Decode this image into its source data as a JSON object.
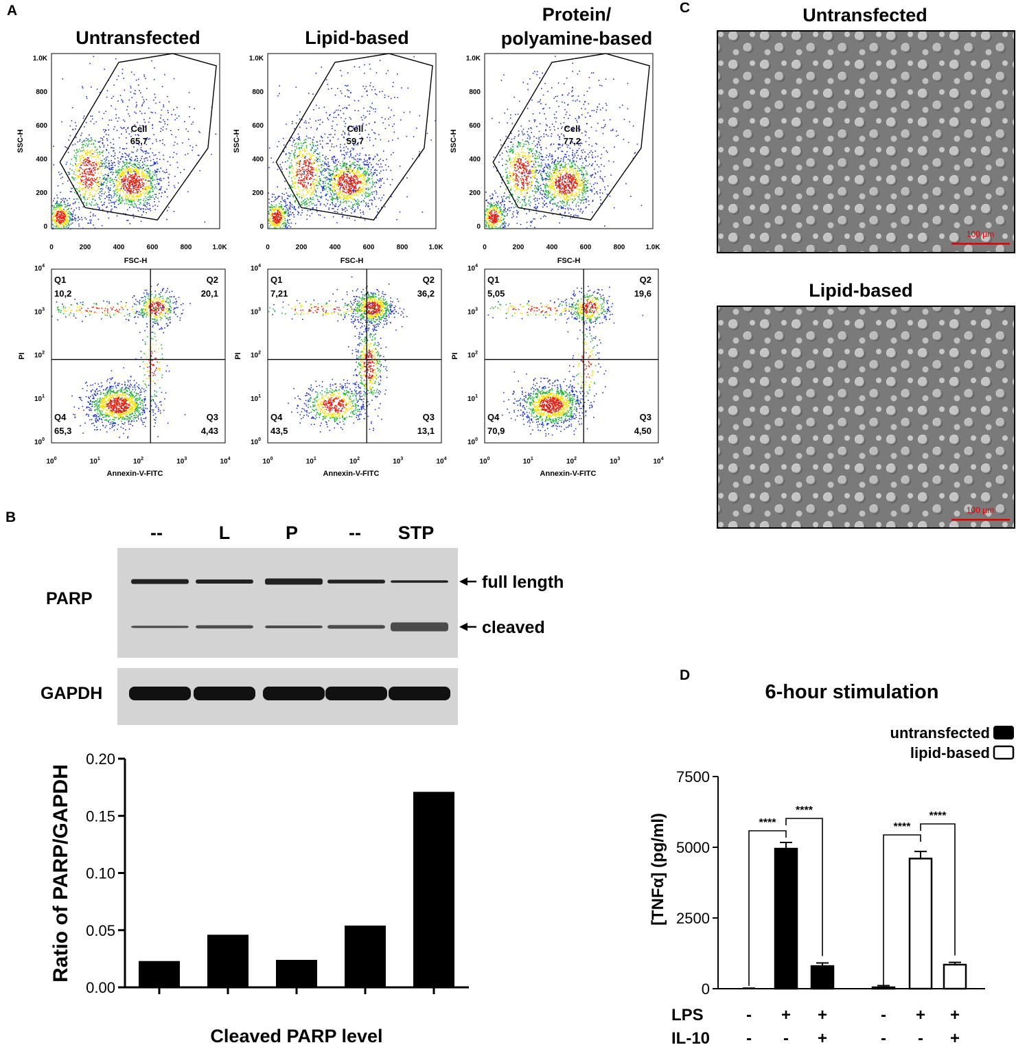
{
  "panels": {
    "A": {
      "letter": "A",
      "columns": [
        {
          "title": [
            "Untransfected"
          ],
          "gate_name": "Cell",
          "gate_value": "65,7",
          "quadrants": {
            "q1": [
              "Q1",
              "10,2"
            ],
            "q2": [
              "Q2",
              "20,1"
            ],
            "q3": [
              "Q3",
              "4,43"
            ],
            "q4": [
              "Q4",
              "65,3"
            ]
          }
        },
        {
          "title": [
            "Lipid-based"
          ],
          "gate_name": "Cell",
          "gate_value": "59,7",
          "quadrants": {
            "q1": [
              "Q1",
              "7,21"
            ],
            "q2": [
              "Q2",
              "36,2"
            ],
            "q3": [
              "Q3",
              "13,1"
            ],
            "q4": [
              "Q4",
              "43,5"
            ]
          }
        },
        {
          "title": [
            "Protein/",
            "polyamine-based"
          ],
          "gate_name": "Cell",
          "gate_value": "77,2",
          "quadrants": {
            "q1": [
              "Q1",
              "5,05"
            ],
            "q2": [
              "Q2",
              "19,6"
            ],
            "q3": [
              "Q3",
              "4,50"
            ],
            "q4": [
              "Q4",
              "70,9"
            ]
          }
        }
      ],
      "scatter_axes": {
        "x_label": "FSC-H",
        "y_label": "SSC-H",
        "ticks": [
          "0",
          "200",
          "400",
          "600",
          "800",
          "1.0K"
        ]
      },
      "annexin_axes": {
        "x_label": "Annexin-V-FITC",
        "y_label": "PI",
        "tick_exponents": [
          "0",
          "1",
          "2",
          "3",
          "4"
        ],
        "tick_base": "10"
      },
      "colors": {
        "density_low": "#1a2fd0",
        "density_mid": "#22b23a",
        "density_high": "#f5e000",
        "density_peak": "#e02010"
      }
    },
    "B": {
      "letter": "B",
      "lanes": [
        "--",
        "L",
        "P",
        "--",
        "STP"
      ],
      "blot_labels": {
        "parp": "PARP",
        "gapdh": "GAPDH"
      },
      "band_labels": {
        "full": "full length",
        "cleaved": "cleaved"
      },
      "bar_color": "#000000"
    },
    "C": {
      "letter": "C",
      "images": [
        {
          "title": "Untransfected",
          "scale": "100 µm"
        },
        {
          "title": "Lipid-based",
          "scale": "100 µm"
        }
      ],
      "scale_color": "#e00000"
    },
    "D": {
      "letter": "D",
      "title": "6-hour stimulation",
      "legend": [
        {
          "name": "untransfected",
          "fill": "#000000"
        },
        {
          "name": "lipid-based",
          "fill": "#ffffff"
        }
      ],
      "conditions": {
        "lps_label": "LPS",
        "il10_label": "IL-10",
        "lps": [
          "-",
          "+",
          "+",
          "-",
          "+",
          "+"
        ],
        "il10": [
          "-",
          "-",
          "+",
          "-",
          "-",
          "+"
        ]
      },
      "significance": [
        "****",
        "****",
        "****",
        "****"
      ]
    }
  },
  "chart_data": [
    {
      "type": "bar",
      "title": "",
      "categories": [
        "--",
        "L",
        "P",
        "--",
        "STP"
      ],
      "values": [
        0.023,
        0.046,
        0.024,
        0.054,
        0.171
      ],
      "ylabel": "Ratio of  PARP/GAPDH",
      "xlabel": "Cleaved PARP level",
      "ylim": [
        0,
        0.2
      ],
      "yticks": [
        "0.00",
        "0.05",
        "0.10",
        "0.15",
        "0.20"
      ]
    },
    {
      "type": "bar",
      "title": "6-hour stimulation",
      "ylabel": "[TNFα] (pg/ml)",
      "ylim": [
        0,
        7500
      ],
      "yticks": [
        "0",
        "2500",
        "5000",
        "7500"
      ],
      "series": [
        {
          "name": "untransfected",
          "values": [
            0,
            4950,
            800
          ],
          "errors": [
            20,
            220,
            110
          ]
        },
        {
          "name": "lipid-based",
          "values": [
            50,
            4600,
            850
          ],
          "errors": [
            60,
            250,
            80
          ]
        }
      ]
    }
  ]
}
